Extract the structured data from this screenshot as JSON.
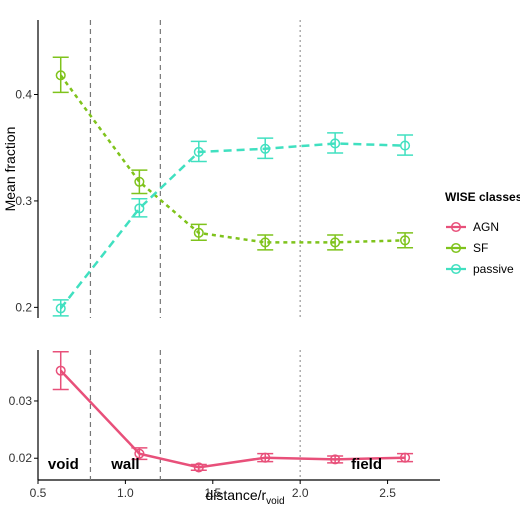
{
  "chart_data": [
    {
      "type": "line",
      "panel": "top",
      "ylabel": "Mean fraction",
      "xlim": [
        0.5,
        2.8
      ],
      "ylim": [
        0.19,
        0.47
      ],
      "yticks": [
        0.2,
        0.3,
        0.4
      ],
      "ytick_labels": [
        "0.2",
        "0.3",
        "0.4"
      ],
      "vlines": [
        {
          "x": 0.8,
          "style": "dashed"
        },
        {
          "x": 1.2,
          "style": "dashed"
        },
        {
          "x": 2.0,
          "style": "dotted"
        }
      ],
      "series": [
        {
          "name": "SF",
          "color": "#7fc31c",
          "linestyle": "dotted",
          "x": [
            0.63,
            1.08,
            1.42,
            1.8,
            2.2,
            2.6
          ],
          "y": [
            0.418,
            0.318,
            0.27,
            0.261,
            0.261,
            0.263
          ],
          "err_low": [
            0.402,
            0.307,
            0.263,
            0.254,
            0.254,
            0.256
          ],
          "err_high": [
            0.435,
            0.329,
            0.278,
            0.268,
            0.268,
            0.27
          ]
        },
        {
          "name": "passive",
          "color": "#40e0c0",
          "linestyle": "dashed",
          "x": [
            0.63,
            1.08,
            1.42,
            1.8,
            2.2,
            2.6
          ],
          "y": [
            0.199,
            0.293,
            0.346,
            0.349,
            0.354,
            0.352
          ],
          "err_low": [
            0.192,
            0.285,
            0.337,
            0.34,
            0.345,
            0.343
          ],
          "err_high": [
            0.207,
            0.302,
            0.356,
            0.359,
            0.364,
            0.362
          ]
        }
      ]
    },
    {
      "type": "line",
      "panel": "bottom",
      "xlabel": "distance/r",
      "xlabel_sub": "void",
      "xlim": [
        0.5,
        2.8
      ],
      "ylim": [
        0.0162,
        0.0389
      ],
      "xticks": [
        0.5,
        1.0,
        1.5,
        2.0,
        2.5
      ],
      "xtick_labels": [
        "0.5",
        "1.0",
        "1.5",
        "2.0",
        "2.5"
      ],
      "yticks": [
        0.02,
        0.03
      ],
      "ytick_labels": [
        "0.02",
        "0.03"
      ],
      "vlines": [
        {
          "x": 0.8,
          "style": "dashed"
        },
        {
          "x": 1.2,
          "style": "dashed"
        },
        {
          "x": 2.0,
          "style": "dotted"
        }
      ],
      "region_labels": [
        {
          "text": "void",
          "x": 0.645
        },
        {
          "text": "wall",
          "x": 1.0
        },
        {
          "text": "field",
          "x": 2.38
        }
      ],
      "series": [
        {
          "name": "AGN",
          "color": "#e8507a",
          "linestyle": "solid",
          "x": [
            0.63,
            1.08,
            1.42,
            1.8,
            2.2,
            2.6
          ],
          "y": [
            0.0353,
            0.0208,
            0.0184,
            0.0201,
            0.0198,
            0.0201
          ],
          "err_low": [
            0.032,
            0.0198,
            0.0179,
            0.0194,
            0.0192,
            0.0194
          ],
          "err_high": [
            0.0386,
            0.0218,
            0.0189,
            0.0208,
            0.0204,
            0.0208
          ]
        }
      ]
    }
  ],
  "legend": {
    "title": "WISE classes",
    "placement": "right",
    "entries": [
      {
        "label": "AGN",
        "color": "#e8507a"
      },
      {
        "label": "SF",
        "color": "#7fc31c"
      },
      {
        "label": "passive",
        "color": "#40e0c0"
      }
    ]
  }
}
